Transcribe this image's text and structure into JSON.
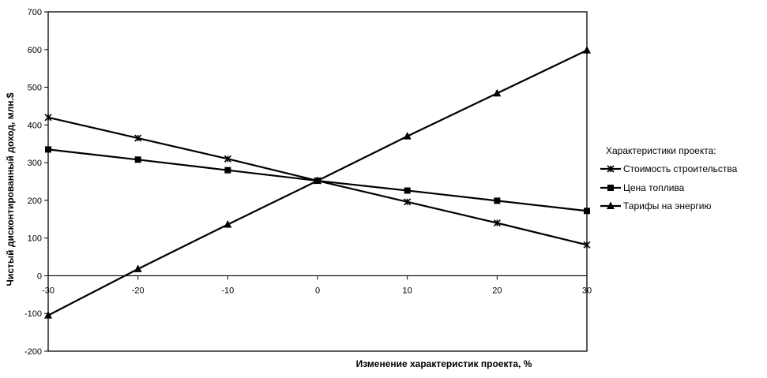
{
  "chart_data": {
    "type": "line",
    "xlabel": "Изменение характеристик проекта, %",
    "ylabel": "Чистый дисконтированный доход, млн.$",
    "x": [
      -30,
      -20,
      -10,
      0,
      10,
      20,
      30
    ],
    "xlim": [
      -30,
      30
    ],
    "ylim": [
      -200,
      700
    ],
    "y_ticks": [
      -200,
      -100,
      0,
      100,
      200,
      300,
      400,
      500,
      600,
      700
    ],
    "x_tick_labels": [
      "-30",
      "-20",
      "-10",
      "0",
      "10",
      "20",
      "30"
    ],
    "y_tick_labels": [
      "-200",
      "-100",
      "0",
      "100",
      "200",
      "300",
      "400",
      "500",
      "600",
      "700"
    ],
    "grid": false,
    "legend_position": "right",
    "legend_title": "Характеристики проекта:",
    "series": [
      {
        "name": "Стоимость строительства",
        "marker": "star",
        "color": "#000000",
        "values": [
          420,
          365,
          310,
          252,
          196,
          140,
          82
        ]
      },
      {
        "name": "Цена топлива",
        "marker": "square",
        "color": "#000000",
        "values": [
          335,
          308,
          280,
          252,
          226,
          199,
          172
        ]
      },
      {
        "name": "Тарифы на энергию",
        "marker": "triangle",
        "color": "#000000",
        "values": [
          -105,
          18,
          136,
          252,
          370,
          484,
          598
        ]
      }
    ]
  }
}
